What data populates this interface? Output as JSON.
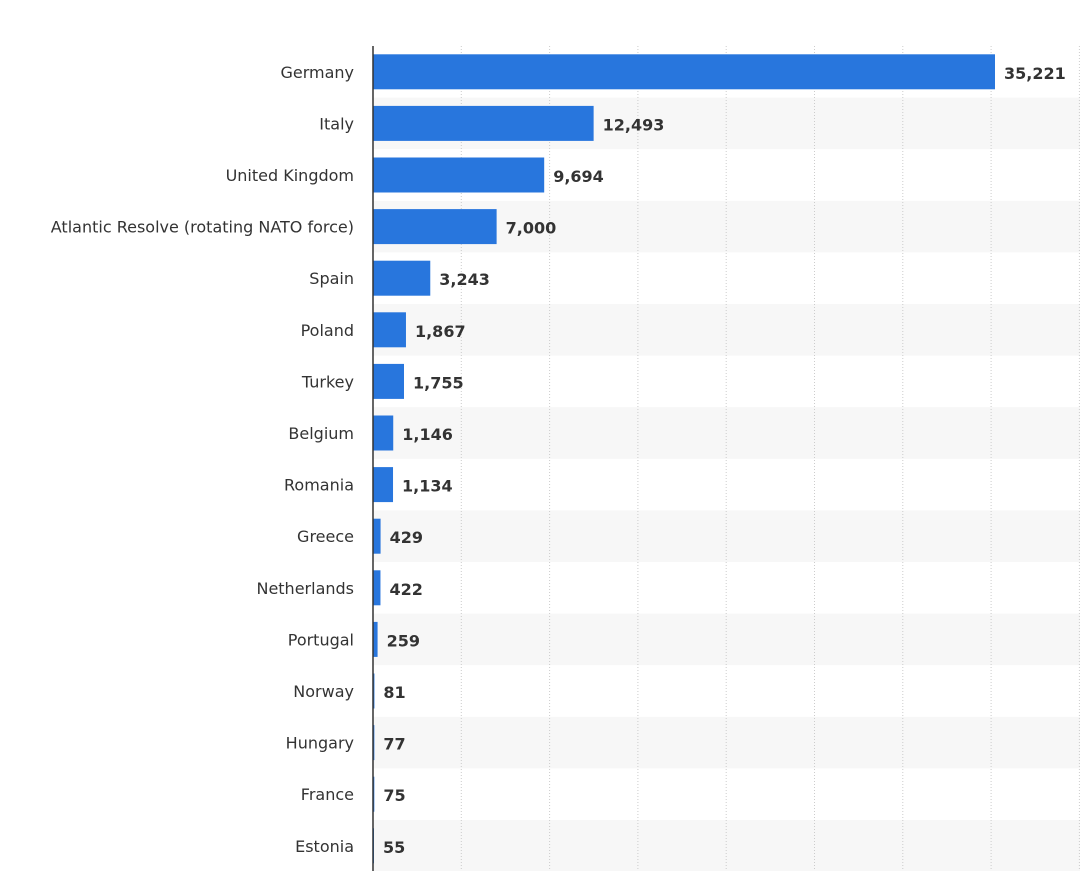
{
  "chart_data": {
    "type": "bar",
    "orientation": "horizontal",
    "categories": [
      "Germany",
      "Italy",
      "United Kingdom",
      "Atlantic Resolve (rotating NATO force)",
      "Spain",
      "Poland",
      "Turkey",
      "Belgium",
      "Romania",
      "Greece",
      "Netherlands",
      "Portugal",
      "Norway",
      "Hungary",
      "France",
      "Estonia"
    ],
    "values": [
      35221,
      12493,
      9694,
      7000,
      3243,
      1867,
      1755,
      1146,
      1134,
      429,
      422,
      259,
      81,
      77,
      75,
      55
    ],
    "value_labels": [
      "35,221",
      "12,493",
      "9,694",
      "7,000",
      "3,243",
      "1,867",
      "1,755",
      "1,146",
      "1,134",
      "429",
      "422",
      "259",
      "81",
      "77",
      "75",
      "55"
    ],
    "xlim": [
      0,
      40000
    ],
    "gridlines": [
      5000,
      10000,
      15000,
      20000,
      25000,
      30000,
      35000,
      40000
    ],
    "grid": true,
    "title": "",
    "xlabel": "",
    "ylabel": "",
    "legend": "none",
    "colors": {
      "bar": "#2876DD",
      "row_alt": "#F7F7F7",
      "grid": "#CCCCCC",
      "axis": "#333333",
      "text": "#333333"
    }
  }
}
